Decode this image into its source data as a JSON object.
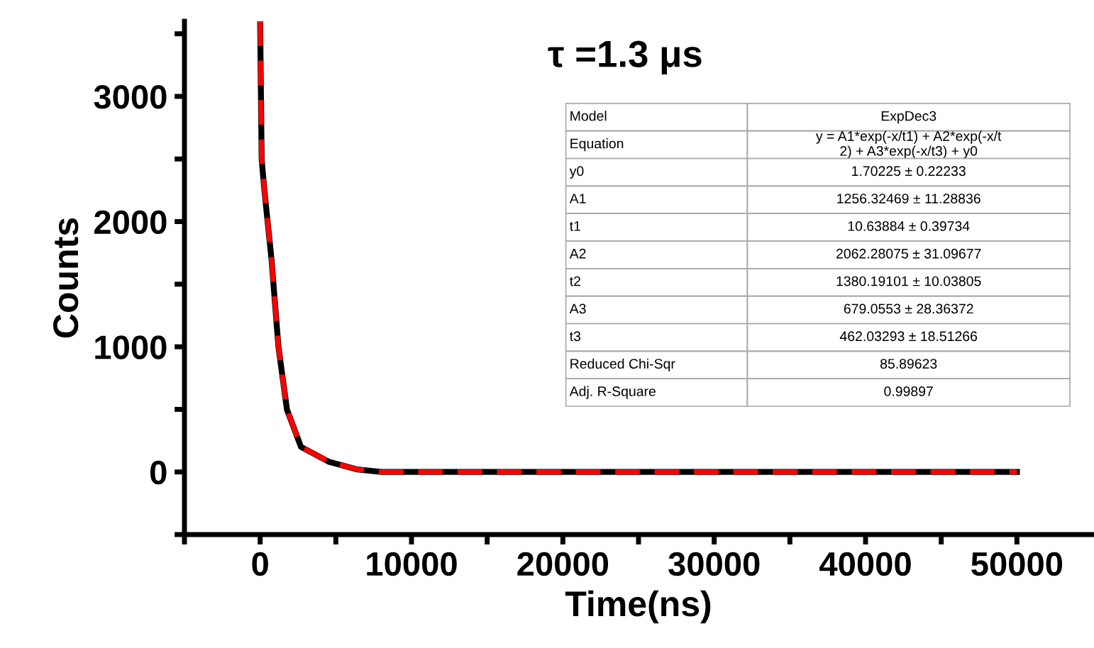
{
  "chart_data": {
    "type": "line",
    "xlabel": "Time(ns)",
    "ylabel": "Counts",
    "xlim": [
      -5000,
      55000
    ],
    "xticks": [
      {
        "value": -5000,
        "label": null
      },
      0,
      {
        "value": 5000,
        "label": null
      },
      10000,
      {
        "value": 15000,
        "label": null
      },
      20000,
      {
        "value": 25000,
        "label": null
      },
      30000,
      {
        "value": 35000,
        "label": null
      },
      40000,
      {
        "value": 45000,
        "label": null
      },
      50000
    ],
    "ylim": [
      -500,
      3600
    ],
    "yticks": [
      {
        "value": -500,
        "label": null
      },
      0,
      {
        "value": 500,
        "label": null
      },
      1000,
      {
        "value": 1500,
        "label": null
      },
      2000,
      {
        "value": 2500,
        "label": null
      },
      3000,
      {
        "value": 3500,
        "label": null
      }
    ],
    "grid": false,
    "legend": false,
    "x": [
      0,
      100,
      280,
      750,
      1210,
      1770,
      2700,
      4570,
      6440,
      8000,
      10000,
      20000,
      30000,
      40000,
      50000
    ],
    "series": [
      {
        "color": "#000000",
        "line_style": "solid",
        "values": [
          3600,
          2500,
          2250,
          1700,
          1000,
          500,
          200,
          80,
          20,
          0,
          0,
          0,
          0,
          0,
          0
        ]
      },
      {
        "color": "#ff0000",
        "line_style": "dashed",
        "values": [
          3600,
          2500,
          2250,
          1700,
          1000,
          500,
          200,
          80,
          20,
          0,
          0,
          0,
          0,
          0,
          0
        ]
      }
    ],
    "annotations": [
      "τ =1.3 μs",
      "Model",
      "ExpDec3",
      "Equation",
      "y = A1*exp(-x/t1) + A2*exp(-x/t\n2) + A3*exp(-x/t3) + y0",
      "y0",
      "1.70225 ± 0.22233",
      "A1",
      "1256.32469 ± 11.28836",
      "t1",
      "10.63884 ± 0.39734",
      "A2",
      "2062.28075 ± 31.09677",
      "t2",
      "1380.19101 ± 10.03805",
      "A3",
      "679.0553 ± 28.36372",
      "t3",
      "462.03293 ± 18.51266",
      "Reduced Chi-Sqr",
      "85.89623",
      "Adj. R-Square",
      "0.99897"
    ]
  }
}
